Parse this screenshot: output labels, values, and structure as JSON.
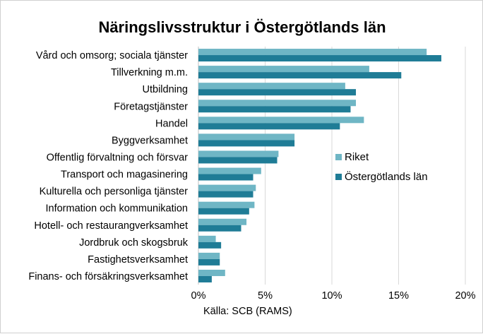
{
  "chart_data": {
    "type": "bar",
    "orientation": "horizontal",
    "title": "Näringslivsstruktur i Östergötlands län",
    "categories": [
      "Vård och omsorg; sociala tjänster",
      "Tillverkning m.m.",
      "Utbildning",
      "Företagstjänster",
      "Handel",
      "Byggverksamhet",
      "Offentlig förvaltning och försvar",
      "Transport och magasinering",
      "Kulturella och personliga tjänster",
      "Information och kommunikation",
      "Hotell- och restaurangverksamhet",
      "Jordbruk och skogsbruk",
      "Fastighetsverksamhet",
      "Finans- och försäkringsverksamhet"
    ],
    "series": [
      {
        "name": "Riket",
        "color": "#6fb6c5",
        "values": [
          17.1,
          12.8,
          11.0,
          11.8,
          12.4,
          7.2,
          6.0,
          4.7,
          4.3,
          4.2,
          3.6,
          1.3,
          1.6,
          2.0
        ]
      },
      {
        "name": "Östergötlands län",
        "color": "#1f7c96",
        "values": [
          18.2,
          15.2,
          11.8,
          11.4,
          10.6,
          7.2,
          5.9,
          4.1,
          4.1,
          3.8,
          3.2,
          1.7,
          1.6,
          1.0
        ]
      }
    ],
    "xlim": [
      0,
      20
    ],
    "xticks": [
      "0%",
      "5%",
      "10%",
      "15%",
      "20%"
    ],
    "xtick_values": [
      0,
      5,
      10,
      15,
      20
    ],
    "grid": true,
    "legend_position": "right",
    "source_note": "Källa: SCB (RAMS)"
  }
}
